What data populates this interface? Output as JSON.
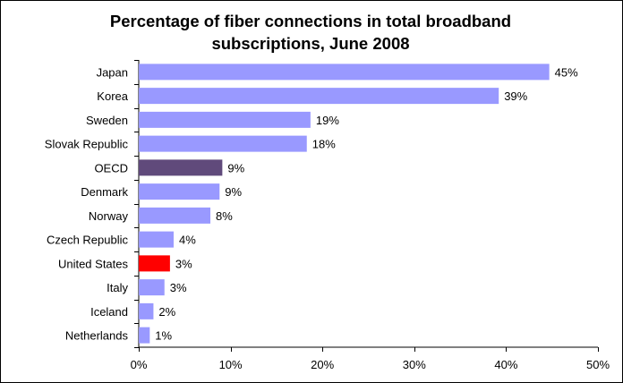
{
  "chart_data": {
    "type": "bar",
    "orientation": "horizontal",
    "title_lines": [
      "Percentage of fiber connections in total broadband",
      "subscriptions, June 2008"
    ],
    "xlabel": "",
    "ylabel": "",
    "categories": [
      "Japan",
      "Korea",
      "Sweden",
      "Slovak Republic",
      "OECD",
      "Denmark",
      "Norway",
      "Czech Republic",
      "United States",
      "Italy",
      "Iceland",
      "Netherlands"
    ],
    "values": [
      44.7,
      39.2,
      18.7,
      18.3,
      9.1,
      8.8,
      7.8,
      3.8,
      3.4,
      2.8,
      1.6,
      1.2
    ],
    "value_labels": [
      "45%",
      "39%",
      "19%",
      "18%",
      "9%",
      "9%",
      "8%",
      "4%",
      "3%",
      "3%",
      "2%",
      "1%"
    ],
    "xlim": [
      0,
      50
    ],
    "xticks": [
      0,
      10,
      20,
      30,
      40,
      50
    ],
    "xtick_labels": [
      "0%",
      "10%",
      "20%",
      "30%",
      "40%",
      "50%"
    ],
    "grid": false,
    "legend": "none",
    "colors": {
      "default": "#9999ff",
      "highlight": {
        "OECD": "#604a7b",
        "United States": "#ff0000"
      }
    }
  }
}
